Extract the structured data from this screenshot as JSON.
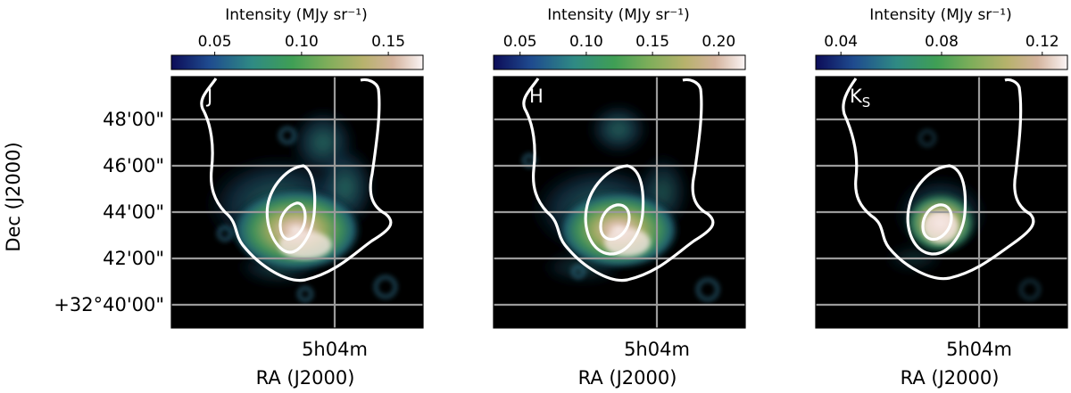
{
  "chart_data": {
    "type": "heatmap",
    "shared": {
      "ylabel": "Dec (J2000)",
      "xlabel": "RA (J2000)",
      "x_ticks": [
        "5h04m"
      ],
      "y_ticks": [
        "48'00\"",
        "46'00\"",
        "44'00\"",
        "42'00\"",
        "+32°40'00\""
      ],
      "colormap": "gist_earth",
      "grid": true,
      "contour_color": "#ffffff"
    },
    "panels": [
      {
        "band": "J",
        "colorbar_label": "Intensity (MJy sr⁻¹)",
        "colorbar_ticks": [
          "0.05",
          "0.10",
          "0.15"
        ],
        "colorbar_range": [
          0.025,
          0.17
        ],
        "colorbar_tick_values": [
          0.05,
          0.1,
          0.15
        ]
      },
      {
        "band": "H",
        "colorbar_label": "Intensity (MJy sr⁻¹)",
        "colorbar_ticks": [
          "0.05",
          "0.10",
          "0.15",
          "0.20"
        ],
        "colorbar_range": [
          0.03,
          0.22
        ],
        "colorbar_tick_values": [
          0.05,
          0.1,
          0.15,
          0.2
        ]
      },
      {
        "band": "KS",
        "band_main": "K",
        "band_sub": "S",
        "colorbar_label": "Intensity (MJy sr⁻¹)",
        "colorbar_ticks": [
          "0.04",
          "0.08",
          "0.12"
        ],
        "colorbar_range": [
          0.03,
          0.13
        ],
        "colorbar_tick_values": [
          0.04,
          0.08,
          0.12
        ]
      }
    ]
  }
}
